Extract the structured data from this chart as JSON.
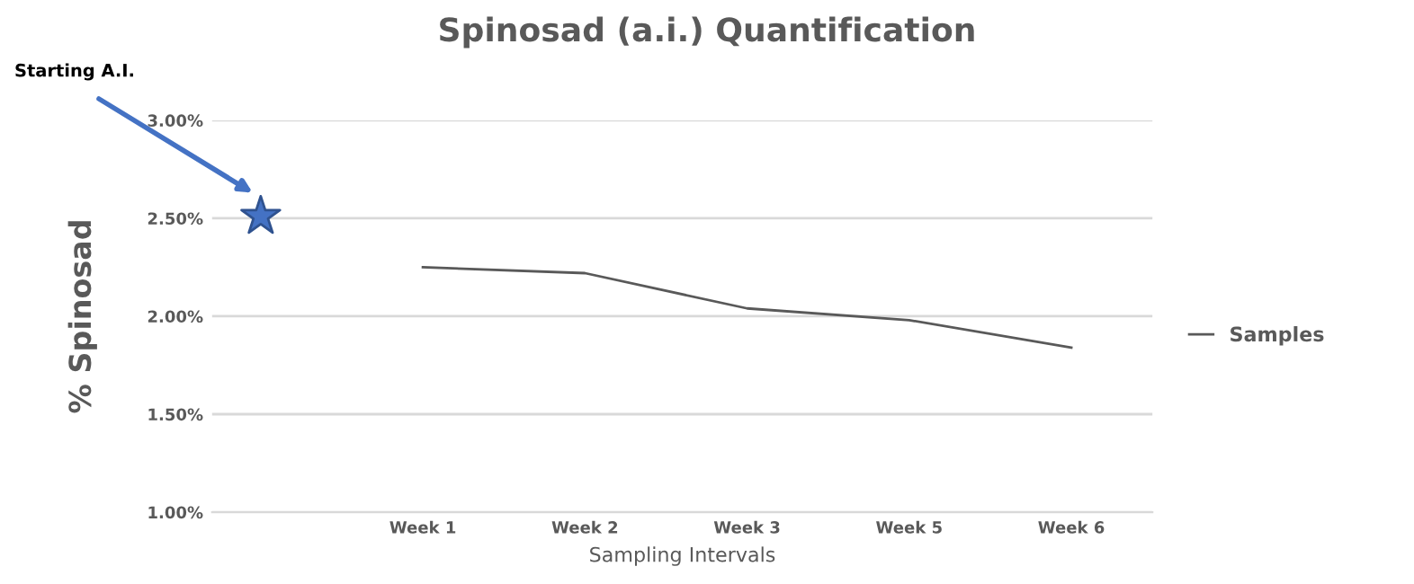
{
  "chart_data": {
    "type": "line",
    "title": "Spinosad (a.i.) Quantification",
    "xlabel": "Sampling Intervals",
    "ylabel": "% Spinosad",
    "categories": [
      null,
      "Week 1",
      "Week 2",
      "Week 3",
      "Week 5",
      "Week 6"
    ],
    "series": [
      {
        "name": "Samples",
        "color": "#595959",
        "values": [
          null,
          2.25,
          2.22,
          2.04,
          1.98,
          1.84
        ]
      },
      {
        "type": "scatter",
        "color": "#4472c4",
        "marker": "star",
        "values": [
          2.51,
          null,
          null,
          null,
          null,
          null
        ]
      }
    ],
    "ylim": [
      1,
      3
    ],
    "yticks": [
      {
        "value": 1,
        "label": "1.00%"
      },
      {
        "value": 1.5,
        "label": "1.50%"
      },
      {
        "value": 2,
        "label": "2.00%"
      },
      {
        "value": 2.5,
        "label": "2.50%"
      },
      {
        "value": 3,
        "label": "3.00%"
      }
    ],
    "annotations": [
      "Starting A.I."
    ],
    "grid": "y",
    "legend": "right",
    "marker": "none",
    "line_style": "solid"
  }
}
